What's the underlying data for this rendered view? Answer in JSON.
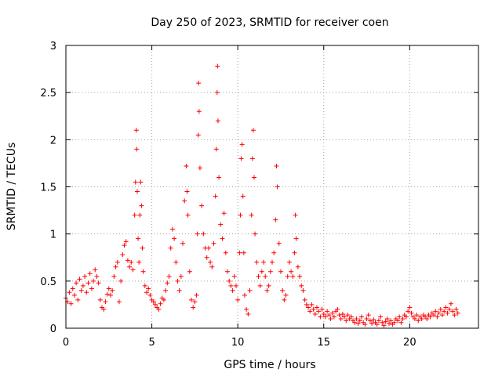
{
  "chart_data": {
    "type": "scatter",
    "title": "Day 250 of 2023, SRMTID for receiver coen",
    "xlabel": "GPS time / hours",
    "ylabel": "SRMTID / TECUs",
    "xlim": [
      0,
      24
    ],
    "ylim": [
      0,
      3
    ],
    "xticks": [
      0,
      5,
      10,
      15,
      20
    ],
    "xtick_labels": [
      "0",
      "5",
      "10",
      "15",
      "20"
    ],
    "yticks": [
      0,
      0.5,
      1,
      1.5,
      2,
      2.5,
      3
    ],
    "ytick_labels": [
      "0",
      "0.5",
      "1",
      "1.5",
      "2",
      "2.5",
      "3"
    ],
    "grid": true,
    "marker": "+",
    "color": "#ff0000",
    "series": [
      {
        "name": "SRMTID",
        "points": [
          [
            0.0,
            0.32
          ],
          [
            0.1,
            0.28
          ],
          [
            0.2,
            0.38
          ],
          [
            0.3,
            0.26
          ],
          [
            0.4,
            0.42
          ],
          [
            0.5,
            0.35
          ],
          [
            0.6,
            0.48
          ],
          [
            0.7,
            0.3
          ],
          [
            0.8,
            0.52
          ],
          [
            0.9,
            0.4
          ],
          [
            1.0,
            0.45
          ],
          [
            1.1,
            0.55
          ],
          [
            1.2,
            0.38
          ],
          [
            1.3,
            0.48
          ],
          [
            1.4,
            0.58
          ],
          [
            1.5,
            0.42
          ],
          [
            1.6,
            0.5
          ],
          [
            1.7,
            0.62
          ],
          [
            1.8,
            0.55
          ],
          [
            1.9,
            0.48
          ],
          [
            2.0,
            0.3
          ],
          [
            2.1,
            0.22
          ],
          [
            2.2,
            0.2
          ],
          [
            2.3,
            0.28
          ],
          [
            2.4,
            0.36
          ],
          [
            2.5,
            0.42
          ],
          [
            2.6,
            0.35
          ],
          [
            2.7,
            0.4
          ],
          [
            2.8,
            0.55
          ],
          [
            2.9,
            0.65
          ],
          [
            3.0,
            0.7
          ],
          [
            3.1,
            0.28
          ],
          [
            3.2,
            0.5
          ],
          [
            3.3,
            0.78
          ],
          [
            3.4,
            0.88
          ],
          [
            3.5,
            0.92
          ],
          [
            3.6,
            0.72
          ],
          [
            3.7,
            0.65
          ],
          [
            3.8,
            0.7
          ],
          [
            3.9,
            0.62
          ],
          [
            4.0,
            1.2
          ],
          [
            4.05,
            1.55
          ],
          [
            4.1,
            2.1
          ],
          [
            4.12,
            1.9
          ],
          [
            4.15,
            1.45
          ],
          [
            4.2,
            0.95
          ],
          [
            4.25,
            0.7
          ],
          [
            4.3,
            1.2
          ],
          [
            4.35,
            1.55
          ],
          [
            4.4,
            1.3
          ],
          [
            4.45,
            0.85
          ],
          [
            4.5,
            0.6
          ],
          [
            4.6,
            0.45
          ],
          [
            4.7,
            0.38
          ],
          [
            4.8,
            0.42
          ],
          [
            4.9,
            0.35
          ],
          [
            5.0,
            0.3
          ],
          [
            5.1,
            0.28
          ],
          [
            5.2,
            0.25
          ],
          [
            5.3,
            0.22
          ],
          [
            5.4,
            0.2
          ],
          [
            5.5,
            0.26
          ],
          [
            5.6,
            0.32
          ],
          [
            5.7,
            0.3
          ],
          [
            5.8,
            0.4
          ],
          [
            5.9,
            0.48
          ],
          [
            6.0,
            0.55
          ],
          [
            6.1,
            0.85
          ],
          [
            6.2,
            1.05
          ],
          [
            6.3,
            0.95
          ],
          [
            6.4,
            0.7
          ],
          [
            6.5,
            0.5
          ],
          [
            6.6,
            0.4
          ],
          [
            6.7,
            0.55
          ],
          [
            6.8,
            0.9
          ],
          [
            6.9,
            1.35
          ],
          [
            7.0,
            1.72
          ],
          [
            7.05,
            1.45
          ],
          [
            7.1,
            1.2
          ],
          [
            7.2,
            0.6
          ],
          [
            7.3,
            0.3
          ],
          [
            7.4,
            0.22
          ],
          [
            7.5,
            0.28
          ],
          [
            7.6,
            0.35
          ],
          [
            7.65,
            1.0
          ],
          [
            7.7,
            2.05
          ],
          [
            7.72,
            2.6
          ],
          [
            7.75,
            2.3
          ],
          [
            7.8,
            1.7
          ],
          [
            7.9,
            1.3
          ],
          [
            8.0,
            1.0
          ],
          [
            8.1,
            0.85
          ],
          [
            8.2,
            0.75
          ],
          [
            8.3,
            0.85
          ],
          [
            8.4,
            0.7
          ],
          [
            8.5,
            0.65
          ],
          [
            8.6,
            0.9
          ],
          [
            8.7,
            1.4
          ],
          [
            8.75,
            1.9
          ],
          [
            8.8,
            2.5
          ],
          [
            8.82,
            2.78
          ],
          [
            8.85,
            2.2
          ],
          [
            8.9,
            1.6
          ],
          [
            9.0,
            1.1
          ],
          [
            9.1,
            0.95
          ],
          [
            9.2,
            1.22
          ],
          [
            9.3,
            0.8
          ],
          [
            9.4,
            0.6
          ],
          [
            9.5,
            0.5
          ],
          [
            9.6,
            0.45
          ],
          [
            9.7,
            0.4
          ],
          [
            9.8,
            0.55
          ],
          [
            9.9,
            0.45
          ],
          [
            10.0,
            0.3
          ],
          [
            10.1,
            0.8
          ],
          [
            10.15,
            1.2
          ],
          [
            10.2,
            1.8
          ],
          [
            10.25,
            1.95
          ],
          [
            10.3,
            1.4
          ],
          [
            10.35,
            0.8
          ],
          [
            10.4,
            0.35
          ],
          [
            10.5,
            0.2
          ],
          [
            10.6,
            0.15
          ],
          [
            10.7,
            0.4
          ],
          [
            10.8,
            1.2
          ],
          [
            10.85,
            1.8
          ],
          [
            10.9,
            2.1
          ],
          [
            10.95,
            1.6
          ],
          [
            11.0,
            1.0
          ],
          [
            11.1,
            0.7
          ],
          [
            11.2,
            0.55
          ],
          [
            11.3,
            0.45
          ],
          [
            11.4,
            0.6
          ],
          [
            11.5,
            0.7
          ],
          [
            11.6,
            0.55
          ],
          [
            11.7,
            0.4
          ],
          [
            11.8,
            0.45
          ],
          [
            11.9,
            0.6
          ],
          [
            12.0,
            0.7
          ],
          [
            12.1,
            0.8
          ],
          [
            12.2,
            1.15
          ],
          [
            12.25,
            1.72
          ],
          [
            12.3,
            1.5
          ],
          [
            12.4,
            0.9
          ],
          [
            12.5,
            0.6
          ],
          [
            12.6,
            0.4
          ],
          [
            12.7,
            0.3
          ],
          [
            12.8,
            0.35
          ],
          [
            12.9,
            0.55
          ],
          [
            13.0,
            0.7
          ],
          [
            13.1,
            0.6
          ],
          [
            13.2,
            0.55
          ],
          [
            13.3,
            0.8
          ],
          [
            13.35,
            1.2
          ],
          [
            13.4,
            0.95
          ],
          [
            13.5,
            0.65
          ],
          [
            13.6,
            0.55
          ],
          [
            13.7,
            0.45
          ],
          [
            13.8,
            0.4
          ],
          [
            13.9,
            0.3
          ],
          [
            14.0,
            0.25
          ],
          [
            14.1,
            0.22
          ],
          [
            14.2,
            0.18
          ],
          [
            14.3,
            0.25
          ],
          [
            14.4,
            0.2
          ],
          [
            14.5,
            0.15
          ],
          [
            14.6,
            0.22
          ],
          [
            14.7,
            0.18
          ],
          [
            14.8,
            0.12
          ],
          [
            14.9,
            0.2
          ],
          [
            15.0,
            0.15
          ],
          [
            15.1,
            0.12
          ],
          [
            15.2,
            0.18
          ],
          [
            15.3,
            0.14
          ],
          [
            15.4,
            0.1
          ],
          [
            15.5,
            0.16
          ],
          [
            15.6,
            0.12
          ],
          [
            15.7,
            0.18
          ],
          [
            15.8,
            0.2
          ],
          [
            15.9,
            0.14
          ],
          [
            16.0,
            0.1
          ],
          [
            16.1,
            0.15
          ],
          [
            16.2,
            0.12
          ],
          [
            16.3,
            0.08
          ],
          [
            16.4,
            0.14
          ],
          [
            16.5,
            0.1
          ],
          [
            16.6,
            0.12
          ],
          [
            16.7,
            0.08
          ],
          [
            16.8,
            0.06
          ],
          [
            16.9,
            0.1
          ],
          [
            17.0,
            0.05
          ],
          [
            17.1,
            0.08
          ],
          [
            17.2,
            0.12
          ],
          [
            17.3,
            0.06
          ],
          [
            17.4,
            0.04
          ],
          [
            17.5,
            0.1
          ],
          [
            17.6,
            0.14
          ],
          [
            17.7,
            0.08
          ],
          [
            17.8,
            0.05
          ],
          [
            17.9,
            0.09
          ],
          [
            18.0,
            0.06
          ],
          [
            18.1,
            0.04
          ],
          [
            18.2,
            0.08
          ],
          [
            18.3,
            0.12
          ],
          [
            18.4,
            0.06
          ],
          [
            18.5,
            0.03
          ],
          [
            18.6,
            0.07
          ],
          [
            18.7,
            0.1
          ],
          [
            18.8,
            0.05
          ],
          [
            18.9,
            0.08
          ],
          [
            19.0,
            0.04
          ],
          [
            19.1,
            0.06
          ],
          [
            19.2,
            0.1
          ],
          [
            19.3,
            0.08
          ],
          [
            19.4,
            0.12
          ],
          [
            19.5,
            0.06
          ],
          [
            19.6,
            0.1
          ],
          [
            19.7,
            0.14
          ],
          [
            19.8,
            0.12
          ],
          [
            19.9,
            0.18
          ],
          [
            20.0,
            0.22
          ],
          [
            20.1,
            0.16
          ],
          [
            20.2,
            0.12
          ],
          [
            20.3,
            0.1
          ],
          [
            20.4,
            0.14
          ],
          [
            20.5,
            0.08
          ],
          [
            20.6,
            0.12
          ],
          [
            20.7,
            0.1
          ],
          [
            20.8,
            0.14
          ],
          [
            20.9,
            0.12
          ],
          [
            21.0,
            0.1
          ],
          [
            21.1,
            0.14
          ],
          [
            21.2,
            0.12
          ],
          [
            21.3,
            0.16
          ],
          [
            21.4,
            0.14
          ],
          [
            21.5,
            0.18
          ],
          [
            21.6,
            0.12
          ],
          [
            21.7,
            0.16
          ],
          [
            21.8,
            0.2
          ],
          [
            21.9,
            0.14
          ],
          [
            22.0,
            0.18
          ],
          [
            22.1,
            0.22
          ],
          [
            22.2,
            0.16
          ],
          [
            22.3,
            0.2
          ],
          [
            22.4,
            0.26
          ],
          [
            22.5,
            0.18
          ],
          [
            22.6,
            0.14
          ],
          [
            22.7,
            0.2
          ],
          [
            22.8,
            0.16
          ]
        ]
      }
    ]
  }
}
